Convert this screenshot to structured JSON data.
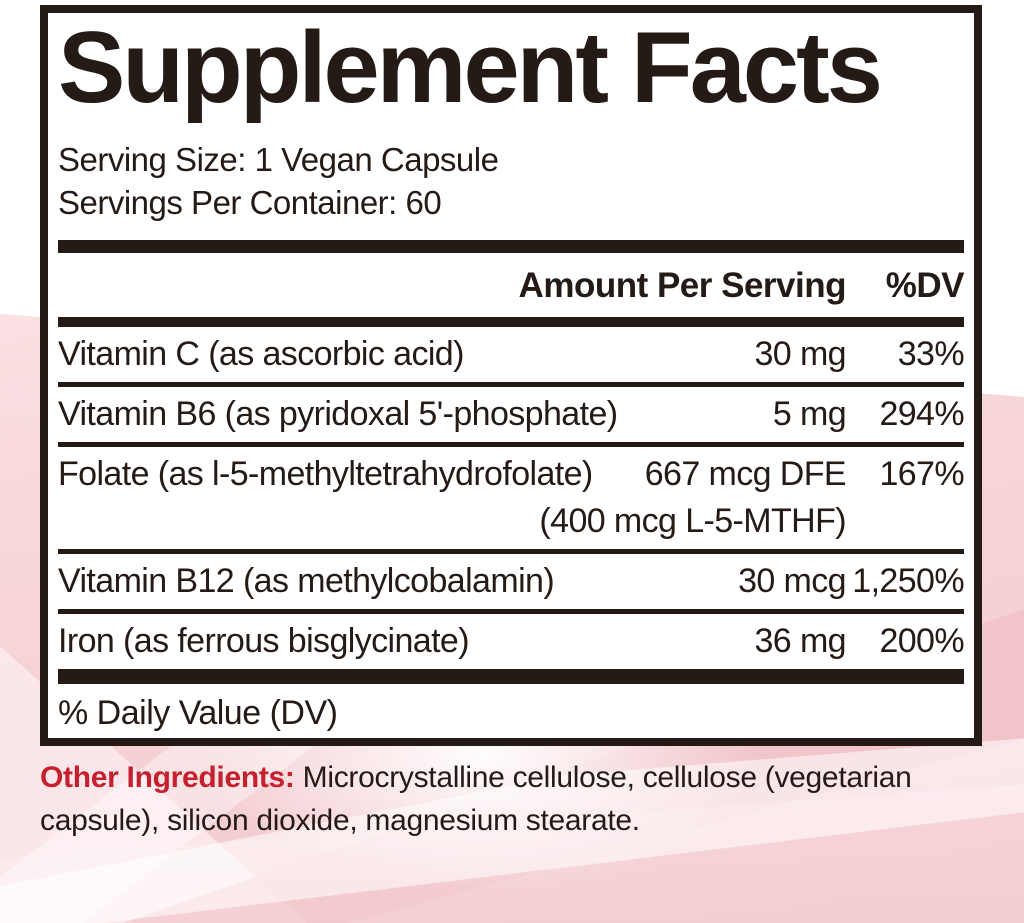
{
  "label": {
    "title": "Supplement Facts",
    "serving_size": "Serving Size: 1 Vegan Capsule",
    "servings_per_container": "Servings Per Container: 60",
    "columns": {
      "amount": "Amount Per Serving",
      "dv": "%DV"
    },
    "rows": [
      {
        "name": "Vitamin C (as ascorbic acid)",
        "amount": "30 mg",
        "dv": "33%"
      },
      {
        "name": "Vitamin B6 (as pyridoxal 5'-phosphate)",
        "amount": "5 mg",
        "dv": "294%"
      },
      {
        "name": "Folate (as l-5-methyltetrahydrofolate)",
        "amount": "667 mcg DFE",
        "amount_line2": "(400 mcg L-5-MTHF)",
        "dv": "167%"
      },
      {
        "name": "Vitamin B12 (as methylcobalamin)",
        "amount": "30 mcg",
        "dv": "1,250%"
      },
      {
        "name": "Iron (as ferrous bisglycinate)",
        "amount": "36 mg",
        "dv": "200%"
      }
    ],
    "footnote": "% Daily Value (DV)"
  },
  "other_ingredients": {
    "label": "Other Ingredients:",
    "text": " Microcrystalline cellulose, cellulose (vegetarian capsule), silicon dioxide, magnesium stearate."
  },
  "colors": {
    "ink": "#241a16",
    "accent_red": "#c6202f",
    "pink_main": "#f2c7cc",
    "pink_light": "#fdeff0"
  }
}
